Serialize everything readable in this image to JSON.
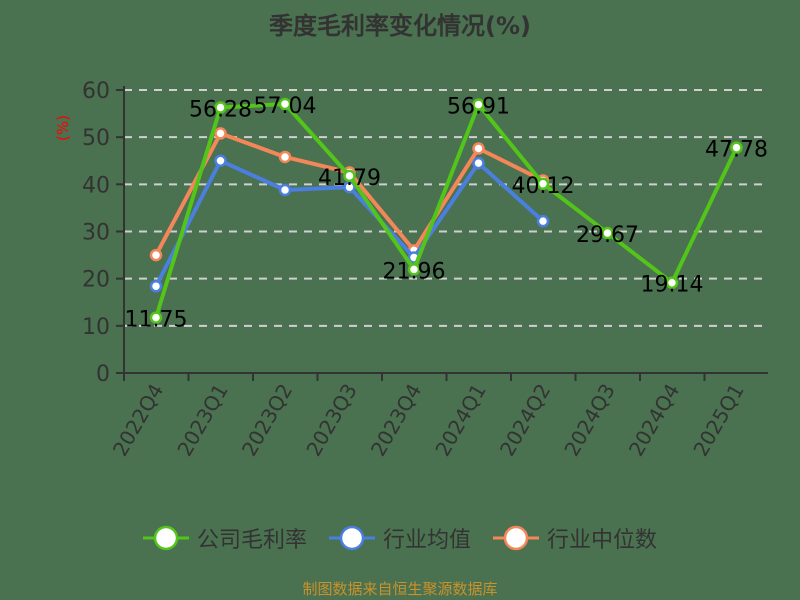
{
  "title": "季度毛利率变化情况(%)",
  "source": "制图数据来自恒生聚源数据库",
  "colors": {
    "background": "#4a7150",
    "company": "#52c41a",
    "industry_avg": "#4a7fe0",
    "industry_median": "#f4875a",
    "axis": "#333333",
    "grid": "#d0d0d0",
    "unit_label": "#ff0000",
    "source": "#c9922a"
  },
  "legend": [
    {
      "name": "公司毛利率",
      "color": "#52c41a"
    },
    {
      "name": "行业均值",
      "color": "#4a7fe0"
    },
    {
      "name": "行业中位数",
      "color": "#f4875a"
    }
  ],
  "chart_data": {
    "type": "line",
    "title": "季度毛利率变化情况(%)",
    "xlabel": "",
    "ylabel": "(%)",
    "ylim": [
      0,
      60
    ],
    "yticks": [
      0,
      10,
      20,
      30,
      40,
      50,
      60
    ],
    "grid": true,
    "legend_position": "bottom",
    "categories": [
      "2022Q4",
      "2023Q1",
      "2023Q2",
      "2023Q3",
      "2023Q4",
      "2024Q1",
      "2024Q2",
      "2024Q3",
      "2024Q4",
      "2025Q1"
    ],
    "series": [
      {
        "name": "公司毛利率",
        "values": [
          11.75,
          56.28,
          57.04,
          41.79,
          21.96,
          56.91,
          40.12,
          29.67,
          19.14,
          47.78
        ],
        "labeled": true
      },
      {
        "name": "行业均值",
        "values": [
          18.4,
          45.0,
          38.8,
          39.4,
          24.5,
          44.5,
          32.2,
          null,
          null,
          null
        ],
        "labeled": false
      },
      {
        "name": "行业中位数",
        "values": [
          25.0,
          50.8,
          45.8,
          42.5,
          26.0,
          47.6,
          40.8,
          null,
          null,
          null
        ],
        "labeled": false
      }
    ],
    "data_labels": [
      "11.75",
      "56.28",
      "57.04",
      "41.79",
      "21.96",
      "56.91",
      "40.12",
      "29.67",
      "19.14",
      "47.78"
    ]
  }
}
